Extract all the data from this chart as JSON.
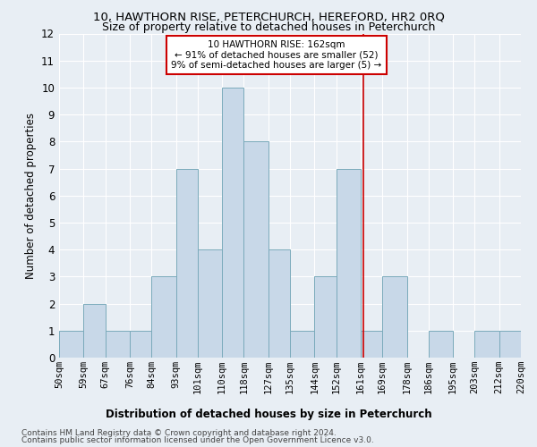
{
  "title": "10, HAWTHORN RISE, PETERCHURCH, HEREFORD, HR2 0RQ",
  "subtitle": "Size of property relative to detached houses in Peterchurch",
  "xlabel": "Distribution of detached houses by size in Peterchurch",
  "ylabel": "Number of detached properties",
  "bar_edges": [
    50,
    59,
    67,
    76,
    84,
    93,
    101,
    110,
    118,
    127,
    135,
    144,
    152,
    161,
    169,
    178,
    186,
    195,
    203,
    212,
    220
  ],
  "bar_heights": [
    1,
    2,
    1,
    1,
    3,
    7,
    4,
    10,
    8,
    4,
    1,
    3,
    7,
    1,
    3,
    0,
    1,
    0,
    1,
    1
  ],
  "bar_color": "#c8d8e8",
  "bar_edgecolor": "#7aaabb",
  "vline_x": 162,
  "vline_color": "#cc0000",
  "ylim": [
    0,
    12
  ],
  "yticks": [
    0,
    1,
    2,
    3,
    4,
    5,
    6,
    7,
    8,
    9,
    10,
    11,
    12
  ],
  "annotation_text": "10 HAWTHORN RISE: 162sqm\n← 91% of detached houses are smaller (52)\n9% of semi-detached houses are larger (5) →",
  "annotation_box_color": "#ffffff",
  "annotation_box_edgecolor": "#cc0000",
  "footer_line1": "Contains HM Land Registry data © Crown copyright and database right 2024.",
  "footer_line2": "Contains public sector information licensed under the Open Government Licence v3.0.",
  "background_color": "#e8eef4",
  "plot_background": "#e8eef4",
  "grid_color": "#ffffff",
  "title_fontsize": 9.5,
  "subtitle_fontsize": 9,
  "label_fontsize": 8.5,
  "tick_fontsize": 7.5,
  "annotation_fontsize": 7.5,
  "footer_fontsize": 6.5
}
